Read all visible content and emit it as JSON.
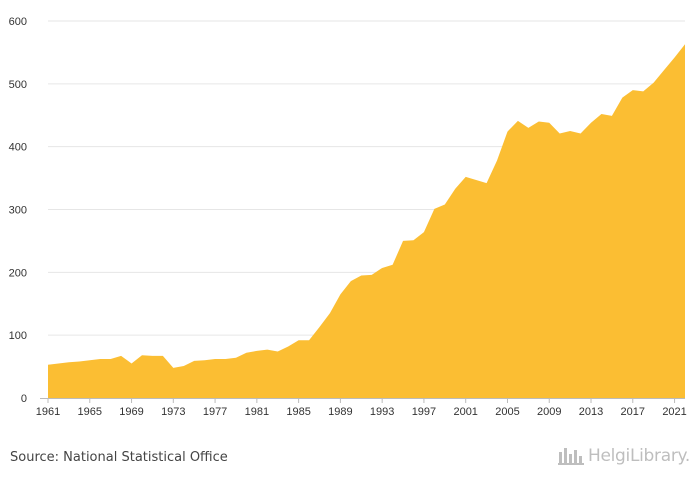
{
  "chart_data": {
    "type": "area",
    "title": "",
    "xlabel": "",
    "ylabel": "",
    "x": [
      1961,
      1962,
      1963,
      1964,
      1965,
      1966,
      1967,
      1968,
      1969,
      1970,
      1971,
      1972,
      1973,
      1974,
      1975,
      1976,
      1977,
      1978,
      1979,
      1980,
      1981,
      1982,
      1983,
      1984,
      1985,
      1986,
      1987,
      1988,
      1989,
      1990,
      1991,
      1992,
      1993,
      1994,
      1995,
      1996,
      1997,
      1998,
      1999,
      2000,
      2001,
      2002,
      2003,
      2004,
      2005,
      2006,
      2007,
      2008,
      2009,
      2010,
      2011,
      2012,
      2013,
      2014,
      2015,
      2016,
      2017,
      2018,
      2019,
      2020,
      2021,
      2022
    ],
    "series": [
      {
        "values": [
          53,
          55,
          57,
          58,
          60,
          62,
          62,
          67,
          55,
          68,
          67,
          67,
          48,
          51,
          59,
          60,
          62,
          62,
          64,
          72,
          75,
          77,
          74,
          82,
          92,
          92,
          113,
          135,
          165,
          186,
          195,
          196,
          207,
          212,
          250,
          251,
          264,
          301,
          308,
          333,
          352,
          347,
          342,
          378,
          424,
          441,
          430,
          440,
          438,
          421,
          425,
          421,
          438,
          452,
          449,
          478,
          490,
          488,
          502,
          522,
          542,
          563
        ]
      }
    ],
    "xticks": [
      "1961",
      "1965",
      "1969",
      "1973",
      "1977",
      "1981",
      "1985",
      "1989",
      "1993",
      "1997",
      "2001",
      "2005",
      "2009",
      "2013",
      "2017",
      "2021"
    ],
    "yticks": [
      "0",
      "100",
      "200",
      "300",
      "400",
      "500",
      "600"
    ],
    "ylim": [
      0,
      600
    ],
    "xlim": [
      1961,
      2022
    ],
    "grid": true,
    "color": "#FBBE33"
  },
  "footer": {
    "source": "Source: National Statistical Office",
    "logo_text": "HelgiLibrary.",
    "logo_icon": "helgilibrary-logo-icon"
  }
}
